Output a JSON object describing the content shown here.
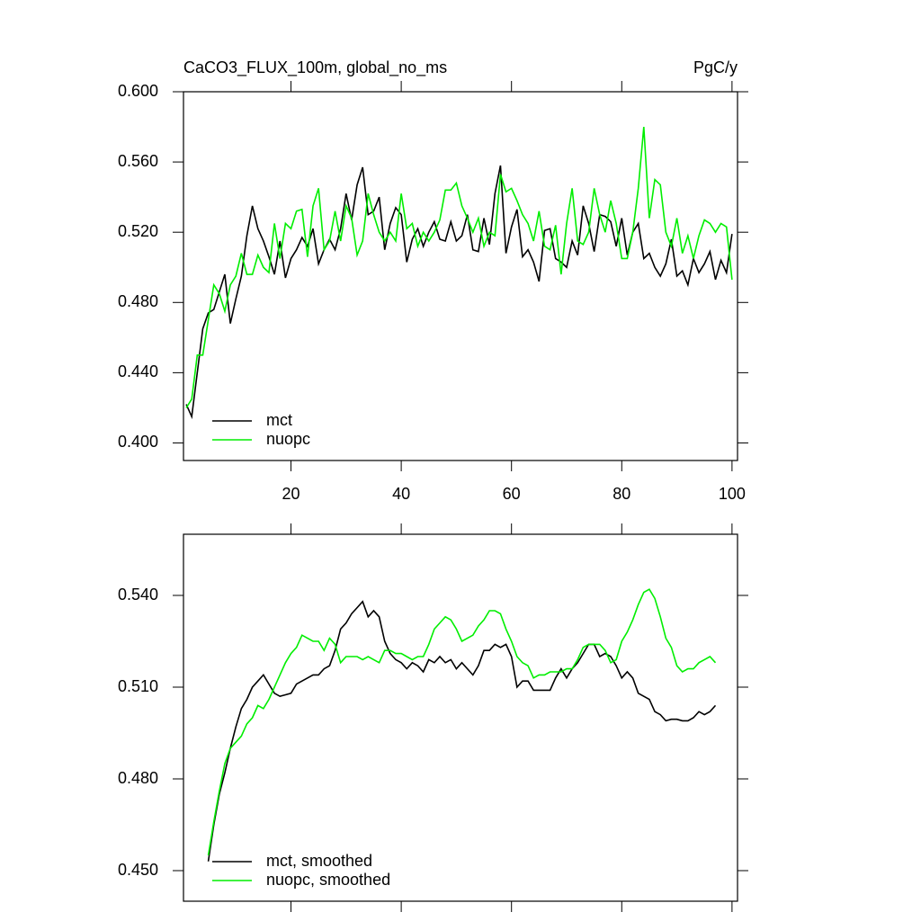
{
  "chart_data": [
    {
      "type": "line",
      "title": "CaCO3_FLUX_100m, global_no_ms",
      "units": "PgC/y",
      "x": [
        1,
        2,
        3,
        4,
        5,
        6,
        7,
        8,
        9,
        10,
        11,
        12,
        13,
        14,
        15,
        16,
        17,
        18,
        19,
        20,
        21,
        22,
        23,
        24,
        25,
        26,
        27,
        28,
        29,
        30,
        31,
        32,
        33,
        34,
        35,
        36,
        37,
        38,
        39,
        40,
        41,
        42,
        43,
        44,
        45,
        46,
        47,
        48,
        49,
        50,
        51,
        52,
        53,
        54,
        55,
        56,
        57,
        58,
        59,
        60,
        61,
        62,
        63,
        64,
        65,
        66,
        67,
        68,
        69,
        70,
        71,
        72,
        73,
        74,
        75,
        76,
        77,
        78,
        79,
        80,
        81,
        82,
        83,
        84,
        85,
        86,
        87,
        88,
        89,
        90,
        91,
        92,
        93,
        94,
        95,
        96,
        97,
        98,
        99,
        100
      ],
      "series": [
        {
          "name": "mct",
          "color": "#000000",
          "values": [
            0.422,
            0.415,
            0.44,
            0.465,
            0.474,
            0.476,
            0.486,
            0.496,
            0.468,
            0.482,
            0.495,
            0.518,
            0.535,
            0.522,
            0.515,
            0.506,
            0.496,
            0.515,
            0.494,
            0.505,
            0.51,
            0.517,
            0.512,
            0.522,
            0.502,
            0.51,
            0.516,
            0.51,
            0.522,
            0.542,
            0.527,
            0.547,
            0.557,
            0.53,
            0.532,
            0.54,
            0.51,
            0.525,
            0.534,
            0.53,
            0.503,
            0.516,
            0.522,
            0.512,
            0.52,
            0.526,
            0.516,
            0.515,
            0.526,
            0.515,
            0.518,
            0.53,
            0.51,
            0.509,
            0.528,
            0.513,
            0.542,
            0.558,
            0.508,
            0.523,
            0.533,
            0.506,
            0.51,
            0.503,
            0.492,
            0.521,
            0.522,
            0.505,
            0.503,
            0.5,
            0.515,
            0.507,
            0.535,
            0.525,
            0.509,
            0.53,
            0.529,
            0.526,
            0.512,
            0.528,
            0.507,
            0.52,
            0.525,
            0.505,
            0.508,
            0.5,
            0.495,
            0.502,
            0.516,
            0.495,
            0.498,
            0.49,
            0.505,
            0.497,
            0.502,
            0.509,
            0.493,
            0.504,
            0.497,
            0.519
          ]
        },
        {
          "name": "nuopc",
          "color": "#00ee00",
          "values": [
            0.42,
            0.425,
            0.45,
            0.45,
            0.47,
            0.49,
            0.485,
            0.475,
            0.49,
            0.495,
            0.508,
            0.496,
            0.496,
            0.507,
            0.5,
            0.497,
            0.525,
            0.505,
            0.525,
            0.522,
            0.532,
            0.533,
            0.506,
            0.535,
            0.545,
            0.51,
            0.515,
            0.532,
            0.515,
            0.535,
            0.528,
            0.507,
            0.515,
            0.542,
            0.53,
            0.52,
            0.515,
            0.52,
            0.515,
            0.542,
            0.522,
            0.525,
            0.512,
            0.52,
            0.515,
            0.52,
            0.527,
            0.544,
            0.544,
            0.548,
            0.535,
            0.528,
            0.52,
            0.528,
            0.512,
            0.52,
            0.518,
            0.553,
            0.543,
            0.545,
            0.538,
            0.53,
            0.525,
            0.515,
            0.532,
            0.512,
            0.51,
            0.524,
            0.496,
            0.525,
            0.545,
            0.515,
            0.513,
            0.52,
            0.545,
            0.53,
            0.52,
            0.538,
            0.525,
            0.505,
            0.505,
            0.52,
            0.545,
            0.58,
            0.528,
            0.55,
            0.547,
            0.52,
            0.512,
            0.528,
            0.508,
            0.518,
            0.505,
            0.518,
            0.527,
            0.525,
            0.52,
            0.525,
            0.523,
            0.493
          ]
        }
      ],
      "xlim": [
        0.5,
        101
      ],
      "xticks": [
        20,
        40,
        60,
        80,
        100
      ],
      "show_xtick_labels": true,
      "ylim": [
        0.39,
        0.6
      ],
      "yticks": [
        {
          "value": 0.4,
          "label": "0.400"
        },
        {
          "value": 0.44,
          "label": "0.440"
        },
        {
          "value": 0.48,
          "label": "0.480"
        },
        {
          "value": 0.52,
          "label": "0.520"
        },
        {
          "value": 0.56,
          "label": "0.560"
        },
        {
          "value": 0.6,
          "label": "0.600"
        }
      ],
      "legend": "lower left",
      "grid": false
    },
    {
      "type": "line",
      "x": [
        5,
        6,
        7,
        8,
        9,
        10,
        11,
        12,
        13,
        14,
        15,
        16,
        17,
        18,
        19,
        20,
        21,
        22,
        23,
        24,
        25,
        26,
        27,
        28,
        29,
        30,
        31,
        32,
        33,
        34,
        35,
        36,
        37,
        38,
        39,
        40,
        41,
        42,
        43,
        44,
        45,
        46,
        47,
        48,
        49,
        50,
        51,
        52,
        53,
        54,
        55,
        56,
        57,
        58,
        59,
        60,
        61,
        62,
        63,
        64,
        65,
        66,
        67,
        68,
        69,
        70,
        71,
        72,
        73,
        74,
        75,
        76,
        77,
        78,
        79,
        80,
        81,
        82,
        83,
        84,
        85,
        86,
        87,
        88,
        89,
        90,
        91,
        92,
        93,
        94,
        95,
        96,
        97
      ],
      "series": [
        {
          "name": "mct, smoothed",
          "color": "#000000",
          "values": [
            0.453,
            0.465,
            0.475,
            0.482,
            0.49,
            0.497,
            0.503,
            0.506,
            0.51,
            0.512,
            0.514,
            0.511,
            0.508,
            0.507,
            0.5075,
            0.508,
            0.511,
            0.512,
            0.513,
            0.514,
            0.514,
            0.516,
            0.517,
            0.522,
            0.529,
            0.531,
            0.534,
            0.536,
            0.538,
            0.533,
            0.535,
            0.533,
            0.525,
            0.521,
            0.519,
            0.518,
            0.516,
            0.518,
            0.517,
            0.515,
            0.519,
            0.518,
            0.52,
            0.518,
            0.519,
            0.516,
            0.518,
            0.516,
            0.514,
            0.517,
            0.522,
            0.522,
            0.524,
            0.523,
            0.524,
            0.52,
            0.51,
            0.512,
            0.512,
            0.509,
            0.509,
            0.509,
            0.509,
            0.513,
            0.516,
            0.513,
            0.516,
            0.518,
            0.521,
            0.524,
            0.524,
            0.52,
            0.521,
            0.52,
            0.517,
            0.513,
            0.515,
            0.513,
            0.508,
            0.507,
            0.506,
            0.502,
            0.501,
            0.499,
            0.4995,
            0.4995,
            0.499,
            0.499,
            0.5,
            0.502,
            0.501,
            0.502,
            0.504
          ]
        },
        {
          "name": "nuopc, smoothed",
          "color": "#00ee00",
          "values": [
            0.455,
            0.466,
            0.476,
            0.485,
            0.49,
            0.492,
            0.494,
            0.498,
            0.5,
            0.504,
            0.503,
            0.506,
            0.51,
            0.514,
            0.518,
            0.521,
            0.523,
            0.527,
            0.526,
            0.525,
            0.525,
            0.522,
            0.526,
            0.524,
            0.518,
            0.52,
            0.52,
            0.52,
            0.519,
            0.52,
            0.519,
            0.518,
            0.522,
            0.522,
            0.521,
            0.521,
            0.52,
            0.519,
            0.52,
            0.52,
            0.524,
            0.529,
            0.531,
            0.533,
            0.532,
            0.529,
            0.525,
            0.526,
            0.527,
            0.53,
            0.532,
            0.535,
            0.535,
            0.534,
            0.529,
            0.525,
            0.52,
            0.518,
            0.517,
            0.513,
            0.514,
            0.514,
            0.515,
            0.515,
            0.515,
            0.516,
            0.516,
            0.519,
            0.523,
            0.524,
            0.524,
            0.524,
            0.522,
            0.518,
            0.519,
            0.525,
            0.528,
            0.532,
            0.537,
            0.541,
            0.542,
            0.539,
            0.533,
            0.526,
            0.523,
            0.517,
            0.515,
            0.516,
            0.516,
            0.518,
            0.519,
            0.52,
            0.518
          ]
        }
      ],
      "xlim": [
        0.5,
        101
      ],
      "xticks": [
        20,
        40,
        60,
        80,
        100
      ],
      "show_xtick_labels": false,
      "ylim": [
        0.44,
        0.56
      ],
      "yticks": [
        {
          "value": 0.45,
          "label": "0.450"
        },
        {
          "value": 0.48,
          "label": "0.480"
        },
        {
          "value": 0.51,
          "label": "0.510"
        },
        {
          "value": 0.54,
          "label": "0.540"
        }
      ],
      "legend": "lower left",
      "grid": false
    }
  ]
}
